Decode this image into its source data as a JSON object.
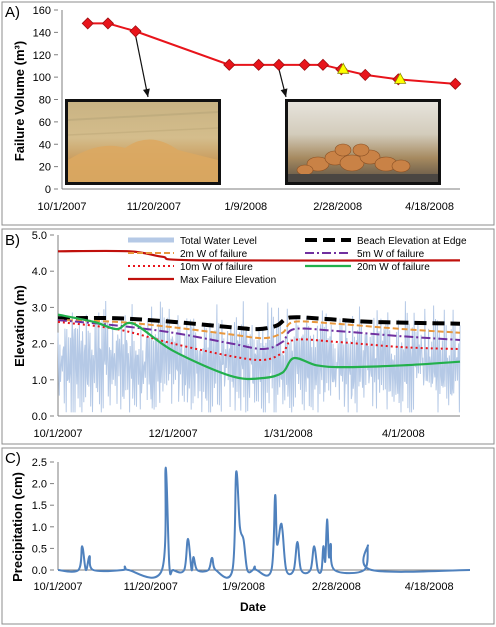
{
  "colors": {
    "failure_line": "#e8141b",
    "failure_marker": "#e8141b",
    "failure_marker_edge": "#a00c10",
    "highlight_marker": "#ffff00",
    "water_level": "#b5c9e6",
    "beach_edge": "#000000",
    "w2m": "#e8973c",
    "w5m": "#7030a0",
    "w10m": "#e8141b",
    "w20m": "#22b04c",
    "max_failure": "#c0100c",
    "precip": "#4f81bd",
    "photo_frame": "#111111",
    "arrow": "#111111"
  },
  "chart_data": [
    {
      "panel": "A)",
      "type": "line",
      "ylabel": "Failure Volume (m³)",
      "ylim": [
        0,
        160
      ],
      "yticks": [
        "0",
        "20",
        "40",
        "60",
        "80",
        "100",
        "120",
        "140",
        "160"
      ],
      "xlim": [
        "2007-10-01",
        "2008-05-10"
      ],
      "xticks": [
        {
          "date": "2007-10-01",
          "label": "10/1/2007"
        },
        {
          "date": "2007-11-20",
          "label": "11/20/2007"
        },
        {
          "date": "2008-01-09",
          "label": "1/9/2008"
        },
        {
          "date": "2008-02-28",
          "label": "2/28/2008"
        },
        {
          "date": "2008-04-18",
          "label": "4/18/2008"
        }
      ],
      "grid": false,
      "series": [
        {
          "marker": "diamond",
          "points": [
            {
              "x": "2007-10-15",
              "y": 148
            },
            {
              "x": "2007-10-26",
              "y": 148
            },
            {
              "x": "2007-11-10",
              "y": 141
            },
            {
              "x": "2007-12-31",
              "y": 111
            },
            {
              "x": "2008-01-16",
              "y": 111
            },
            {
              "x": "2008-01-27",
              "y": 111
            },
            {
              "x": "2008-02-10",
              "y": 111
            },
            {
              "x": "2008-02-20",
              "y": 111
            },
            {
              "x": "2008-03-01",
              "y": 107
            },
            {
              "x": "2008-03-14",
              "y": 102
            },
            {
              "x": "2008-04-01",
              "y": 98
            },
            {
              "x": "2008-05-02",
              "y": 94
            }
          ],
          "highlighted": [
            {
              "x": "2008-03-02",
              "y": 107,
              "marker": "triangle"
            },
            {
              "x": "2008-04-02",
              "y": 98,
              "marker": "triangle"
            }
          ]
        }
      ],
      "annotations": [
        {
          "kind": "photo",
          "photo": "left",
          "arrow_from_point_index": 2
        },
        {
          "kind": "photo",
          "photo": "right",
          "arrow_from_point_index": 5
        }
      ]
    },
    {
      "panel": "B)",
      "type": "line",
      "ylabel": "Elevation (m)",
      "ylim": [
        0,
        5
      ],
      "yticks": [
        "0.0",
        "1.0",
        "2.0",
        "3.0",
        "4.0",
        "5.0"
      ],
      "xlim": [
        "2007-10-01",
        "2008-05-01"
      ],
      "xticks": [
        {
          "date": "2007-10-01",
          "label": "10/1/2007"
        },
        {
          "date": "2007-12-01",
          "label": "12/1/2007"
        },
        {
          "date": "2008-01-31",
          "label": "1/31/2008"
        },
        {
          "date": "2008-04-01",
          "label": "4/1/2008"
        }
      ],
      "legend": {
        "placement": "top",
        "entries": [
          "Total Water Level",
          "Beach Elevation at Edge",
          "2m W of failure",
          "5m W of failure",
          "10m W of failure",
          "20m W of failure",
          "Max Failure Elevation"
        ]
      },
      "series": [
        {
          "name": "Max Failure Elevation",
          "style": "solid",
          "points": [
            [
              "2007-10-01",
              4.55
            ],
            [
              "2007-11-08",
              4.55
            ],
            [
              "2007-11-25",
              4.4
            ],
            [
              "2007-12-15",
              4.3
            ],
            [
              "2008-05-01",
              4.3
            ]
          ]
        },
        {
          "name": "Beach Elevation at Edge",
          "style": "long-dash",
          "points": [
            [
              "2007-10-01",
              2.7
            ],
            [
              "2007-11-01",
              2.7
            ],
            [
              "2007-12-01",
              2.6
            ],
            [
              "2008-01-01",
              2.45
            ],
            [
              "2008-01-15",
              2.4
            ],
            [
              "2008-01-25",
              2.5
            ],
            [
              "2008-02-01",
              2.72
            ],
            [
              "2008-02-20",
              2.68
            ],
            [
              "2008-03-15",
              2.6
            ],
            [
              "2008-05-01",
              2.55
            ]
          ]
        },
        {
          "name": "2m W of failure",
          "style": "dash",
          "points": [
            [
              "2007-10-01",
              2.65
            ],
            [
              "2007-11-01",
              2.6
            ],
            [
              "2007-12-01",
              2.45
            ],
            [
              "2008-01-01",
              2.25
            ],
            [
              "2008-01-18",
              2.15
            ],
            [
              "2008-01-28",
              2.3
            ],
            [
              "2008-02-03",
              2.6
            ],
            [
              "2008-02-25",
              2.55
            ],
            [
              "2008-04-01",
              2.4
            ],
            [
              "2008-05-01",
              2.3
            ]
          ]
        },
        {
          "name": "5m W of failure",
          "style": "dash-dot",
          "points": [
            [
              "2007-10-01",
              2.65
            ],
            [
              "2007-11-01",
              2.5
            ],
            [
              "2007-12-01",
              2.3
            ],
            [
              "2008-01-01",
              2.0
            ],
            [
              "2008-01-18",
              1.85
            ],
            [
              "2008-01-28",
              2.05
            ],
            [
              "2008-02-03",
              2.4
            ],
            [
              "2008-02-25",
              2.35
            ],
            [
              "2008-04-01",
              2.2
            ],
            [
              "2008-05-01",
              2.1
            ]
          ]
        },
        {
          "name": "10m W of failure",
          "style": "dot",
          "points": [
            [
              "2007-10-01",
              2.6
            ],
            [
              "2007-11-01",
              2.4
            ],
            [
              "2007-12-01",
              2.0
            ],
            [
              "2008-01-01",
              1.65
            ],
            [
              "2008-01-18",
              1.55
            ],
            [
              "2008-01-28",
              1.75
            ],
            [
              "2008-02-03",
              2.1
            ],
            [
              "2008-02-25",
              2.05
            ],
            [
              "2008-04-01",
              1.9
            ],
            [
              "2008-05-01",
              1.85
            ]
          ]
        },
        {
          "name": "20m W of failure",
          "style": "solid",
          "points": [
            [
              "2007-10-01",
              2.8
            ],
            [
              "2007-10-20",
              2.6
            ],
            [
              "2007-11-01",
              2.4
            ],
            [
              "2007-11-10",
              2.55
            ],
            [
              "2007-12-01",
              1.8
            ],
            [
              "2008-01-01",
              1.1
            ],
            [
              "2008-01-18",
              1.05
            ],
            [
              "2008-01-28",
              1.2
            ],
            [
              "2008-02-03",
              1.6
            ],
            [
              "2008-02-15",
              1.4
            ],
            [
              "2008-03-01",
              1.35
            ],
            [
              "2008-04-01",
              1.4
            ],
            [
              "2008-05-01",
              1.5
            ]
          ]
        },
        {
          "name": "Total Water Level",
          "style": "oscillating",
          "baseline": 1.5,
          "amplitude": 1.2,
          "min": 0.1,
          "max": 3.6
        }
      ]
    },
    {
      "panel": "C)",
      "type": "line",
      "ylabel": "Precipitation (cm)",
      "xlabel": "Date",
      "ylim": [
        0,
        2.5
      ],
      "yticks": [
        "0.0",
        "0.5",
        "1.0",
        "1.5",
        "2.0",
        "2.5"
      ],
      "xlim": [
        "2007-10-01",
        "2008-05-10"
      ],
      "xticks": [
        {
          "date": "2007-10-01",
          "label": "10/1/2007"
        },
        {
          "date": "2007-11-20",
          "label": "11/20/2007"
        },
        {
          "date": "2008-01-09",
          "label": "1/9/2008"
        },
        {
          "date": "2008-02-28",
          "label": "2/28/2008"
        },
        {
          "date": "2008-04-18",
          "label": "4/18/2008"
        }
      ],
      "series": [
        {
          "points": [
            [
              "2007-10-01",
              0
            ],
            [
              "2007-10-12",
              0
            ],
            [
              "2007-10-14",
              0.55
            ],
            [
              "2007-10-16",
              0
            ],
            [
              "2007-10-18",
              0.32
            ],
            [
              "2007-10-20",
              0
            ],
            [
              "2007-11-05",
              0
            ],
            [
              "2007-11-06",
              0.08
            ],
            [
              "2007-11-08",
              0
            ],
            [
              "2007-11-26",
              0
            ],
            [
              "2007-11-28",
              2.37
            ],
            [
              "2007-11-30",
              0.1
            ],
            [
              "2007-12-02",
              0
            ],
            [
              "2007-12-08",
              0
            ],
            [
              "2007-12-10",
              0.72
            ],
            [
              "2007-12-12",
              0
            ],
            [
              "2007-12-13",
              0.3
            ],
            [
              "2007-12-15",
              0
            ],
            [
              "2007-12-21",
              0
            ],
            [
              "2007-12-23",
              0.28
            ],
            [
              "2007-12-25",
              0
            ],
            [
              "2008-01-03",
              0
            ],
            [
              "2008-01-05",
              2.27
            ],
            [
              "2008-01-07",
              1.0
            ],
            [
              "2008-01-09",
              0.7
            ],
            [
              "2008-01-11",
              0
            ],
            [
              "2008-01-14",
              0
            ],
            [
              "2008-01-15",
              0.08
            ],
            [
              "2008-01-16",
              0
            ],
            [
              "2008-01-24",
              0
            ],
            [
              "2008-01-26",
              1.73
            ],
            [
              "2008-01-27",
              0.6
            ],
            [
              "2008-01-29",
              1.05
            ],
            [
              "2008-01-30",
              0.9
            ],
            [
              "2008-02-01",
              0
            ],
            [
              "2008-02-05",
              0
            ],
            [
              "2008-02-07",
              0.65
            ],
            [
              "2008-02-09",
              0
            ],
            [
              "2008-02-14",
              0
            ],
            [
              "2008-02-16",
              0.55
            ],
            [
              "2008-02-18",
              0
            ],
            [
              "2008-02-20",
              0
            ],
            [
              "2008-02-21",
              0.55
            ],
            [
              "2008-02-22",
              0.2
            ],
            [
              "2008-02-23",
              1.17
            ],
            [
              "2008-02-24",
              0.3
            ],
            [
              "2008-02-25",
              0.6
            ],
            [
              "2008-02-27",
              0
            ],
            [
              "2008-03-14",
              0
            ],
            [
              "2008-03-16",
              0.57
            ],
            [
              "2008-03-18",
              0
            ],
            [
              "2008-05-10",
              0
            ]
          ]
        }
      ]
    }
  ]
}
